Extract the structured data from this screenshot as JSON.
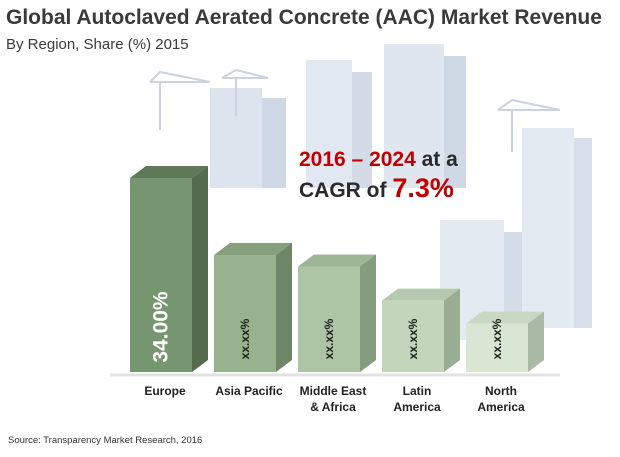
{
  "title": "Global Autoclaved Aerated Concrete (AAC) Market Revenue",
  "subtitle": "By Region, Share (%) 2015",
  "callout": {
    "period": "2016 – 2024",
    "at_a": " at a",
    "cagr_of": "CAGR of ",
    "rate": "7.3%"
  },
  "source": "Source: Transparency Market Research, 2016",
  "colors": {
    "bar_front": [
      "#76966f",
      "#96b38d",
      "#aec5a5",
      "#c3d5bb",
      "#d9e6d3"
    ],
    "bar_side": [
      "#546b4e",
      "#6e8667",
      "#869c7f",
      "#98ad91",
      "#aab9a5"
    ],
    "bar_top": [
      "#5e7858",
      "#86a07e",
      "#9fb696",
      "#b6c9ae",
      "#c9d8c3"
    ],
    "accent": "#c00000"
  },
  "chart_data": {
    "type": "bar",
    "categories": [
      "Europe",
      "Asia Pacific",
      "Middle East & Africa",
      "Latin America",
      "North America"
    ],
    "category_lines": [
      [
        "Europe"
      ],
      [
        "Asia Pacific"
      ],
      [
        "Middle East",
        "& Africa"
      ],
      [
        "Latin",
        "America"
      ],
      [
        "North",
        "America"
      ]
    ],
    "values": [
      34.0,
      20.5,
      18.5,
      12.5,
      8.5
    ],
    "value_labels": [
      "34.00%",
      "xx.xx%",
      "xx.xx%",
      "xx.xx%",
      "xx.xx%"
    ],
    "title": "Global Autoclaved Aerated Concrete (AAC) Market Revenue",
    "xlabel": "",
    "ylabel": "",
    "ylim": [
      0,
      34
    ],
    "grid": false,
    "legend": "none"
  }
}
